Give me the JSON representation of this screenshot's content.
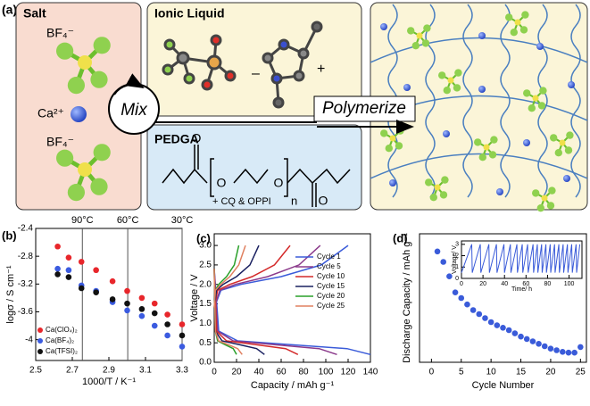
{
  "panel_a": {
    "label": "(a)",
    "salt": {
      "title": "Salt",
      "anion_top": "BF₄⁻",
      "cation": "Ca²⁺",
      "anion_bottom": "BF₄⁻"
    },
    "ionic_liquid": {
      "title": "Ionic Liquid",
      "minus": "–",
      "plus": "+"
    },
    "mix": "Mix",
    "polymerize": "Polymerize",
    "pedga": {
      "title": "PEDGA",
      "oxygens": [
        "O",
        "O",
        "O",
        "O"
      ],
      "n": "n",
      "additives": "+ CQ & OPPI"
    }
  },
  "chart_data": [
    {
      "type": "scatter",
      "label": "(b)",
      "xlabel": "1000/T / K⁻¹",
      "ylabel": "logσ / S cm⁻¹",
      "xlim": [
        2.5,
        3.3
      ],
      "xticks": [
        2.5,
        2.7,
        2.9,
        3.1,
        3.3
      ],
      "ylim": [
        -4.3,
        -2.4
      ],
      "yticks": [
        -2.4,
        -2.8,
        -3.2,
        -3.6,
        -4.0
      ],
      "x": [
        2.62,
        2.68,
        2.75,
        2.83,
        2.92,
        3.0,
        3.08,
        3.15,
        3.22,
        3.3
      ],
      "series": [
        {
          "name": "Ca(ClO₄)₂",
          "color": "#e8262b",
          "values": [
            -2.66,
            -2.82,
            -2.88,
            -3.0,
            -3.16,
            -3.3,
            -3.4,
            -3.48,
            -3.64,
            -3.78
          ]
        },
        {
          "name": "Ca(BF₄)₂",
          "color": "#3b5be0",
          "values": [
            -2.98,
            -3.0,
            -3.22,
            -3.3,
            -3.46,
            -3.58,
            -3.66,
            -3.8,
            -3.94,
            -4.1
          ]
        },
        {
          "name": "Ca(TFSI)₂",
          "color": "#111111",
          "values": [
            -3.06,
            -3.1,
            -3.26,
            -3.32,
            -3.42,
            -3.48,
            -3.56,
            -3.62,
            -3.78,
            -3.94
          ]
        }
      ],
      "reference_lines": [
        {
          "value": 2.755,
          "label": "90°C"
        },
        {
          "value": 3.003,
          "label": "60°C"
        },
        {
          "value": 3.3,
          "label": "30°C"
        }
      ],
      "legend": "lower left"
    },
    {
      "type": "line",
      "label": "(c)",
      "xlabel": "Capacity / mAh g⁻¹",
      "ylabel": "Voltage / V",
      "xlim": [
        0,
        140
      ],
      "xticks": [
        0,
        20,
        40,
        60,
        80,
        100,
        120,
        140
      ],
      "ylim": [
        0,
        3.3
      ],
      "yticks": [
        {
          "value": 0,
          "label": "0.0"
        },
        0.5,
        {
          "value": 1,
          "label": "1.0"
        },
        1.5,
        {
          "value": 2,
          "label": "2.0"
        },
        2.5,
        {
          "value": 3,
          "label": "3.0"
        }
      ],
      "series": [
        {
          "name": "Cycle 1",
          "color": "#3a5bd9",
          "x": [
            0,
            6,
            24,
            60,
            96,
            120,
            null,
            0,
            4,
            21,
            70,
            119,
            140
          ],
          "values": [
            1.4,
            1.85,
            2.0,
            2.2,
            2.5,
            3.0,
            null,
            2.4,
            0.8,
            0.55,
            0.45,
            0.35,
            0.2
          ]
        },
        {
          "name": "Cycle 5",
          "color": "#8b3a8b",
          "x": [
            0,
            5,
            19,
            48,
            76,
            95,
            null,
            0,
            3,
            17,
            55,
            94,
            110
          ],
          "values": [
            1.4,
            1.85,
            2.0,
            2.2,
            2.5,
            3.0,
            null,
            2.4,
            0.8,
            0.55,
            0.45,
            0.35,
            0.2
          ]
        },
        {
          "name": "Cycle 10",
          "color": "#d42a2a",
          "x": [
            0,
            3,
            14,
            34,
            54,
            68,
            null,
            0,
            2,
            11,
            38,
            64,
            75
          ],
          "values": [
            1.4,
            1.85,
            2.0,
            2.2,
            2.5,
            3.0,
            null,
            2.4,
            0.8,
            0.55,
            0.45,
            0.35,
            0.2
          ]
        },
        {
          "name": "Cycle 15",
          "color": "#1a2060",
          "x": [
            0,
            2,
            8,
            20,
            32,
            40,
            null,
            0,
            1,
            7,
            23,
            38,
            45
          ],
          "values": [
            1.4,
            1.85,
            2.0,
            2.2,
            2.5,
            3.0,
            null,
            2.4,
            0.8,
            0.55,
            0.45,
            0.35,
            0.2
          ]
        },
        {
          "name": "Cycle 20",
          "color": "#2aa02a",
          "x": [
            0,
            1,
            4,
            11,
            18,
            22,
            null,
            0,
            1,
            3,
            10,
            17,
            20
          ],
          "values": [
            1.4,
            1.85,
            2.0,
            2.2,
            2.5,
            3.0,
            null,
            2.4,
            0.8,
            0.55,
            0.45,
            0.35,
            0.2
          ]
        },
        {
          "name": "Cycle 25",
          "color": "#e08060",
          "x": [
            0,
            1,
            6,
            14,
            22,
            28,
            null,
            0,
            1,
            4,
            13,
            21,
            25
          ],
          "values": [
            1.4,
            1.85,
            2.0,
            2.2,
            2.5,
            3.0,
            null,
            2.4,
            0.8,
            0.55,
            0.45,
            0.35,
            0.2
          ]
        }
      ],
      "legend": "upper right"
    },
    {
      "type": "scatter",
      "label": "(d)",
      "xlabel": "Cycle Number",
      "ylabel": "Discharge Capacity / mAh g⁻¹",
      "xlim": [
        -2,
        26
      ],
      "xticks": [
        0,
        5,
        10,
        15,
        20,
        25
      ],
      "ylim": [
        0,
        160
      ],
      "x": [
        1,
        2,
        3,
        4,
        5,
        6,
        7,
        8,
        9,
        10,
        11,
        12,
        13,
        14,
        15,
        16,
        17,
        18,
        19,
        20,
        21,
        22,
        23,
        24,
        25
      ],
      "series": [
        {
          "color": "#3a5bd9",
          "values": [
            138,
            125,
            107,
            87,
            80,
            72,
            65,
            60,
            55,
            50,
            46,
            43,
            40,
            36,
            32,
            29,
            26,
            23,
            20,
            17,
            15,
            13,
            12,
            12,
            19
          ]
        }
      ]
    },
    {
      "type": "line",
      "xlabel": "Time/ h",
      "ylabel": "Voltage/ V",
      "xlim": [
        0,
        112
      ],
      "xticks": [
        0,
        20,
        40,
        60,
        80,
        100
      ],
      "ylim": [
        0,
        3.3
      ],
      "yticks": [
        0,
        1,
        2,
        3
      ],
      "series": [
        {
          "color": "#3a5bd9",
          "x": [
            0,
            9.5,
            10,
            17.5,
            18,
            25.5,
            26,
            32.5,
            33,
            39.5,
            40,
            45.5,
            46,
            51.5,
            52,
            56.5,
            57,
            61.5,
            62,
            66.5,
            67,
            70.5,
            71,
            74.5,
            75,
            78.5,
            79,
            82.5,
            83,
            86.5,
            87,
            90.5,
            91,
            94.5,
            95,
            98.5,
            99,
            102.5,
            103,
            106.5,
            107,
            110
          ],
          "values": [
            0.5,
            3.0,
            0.5,
            3.0,
            0.5,
            3.0,
            0.5,
            3.0,
            0.5,
            3.0,
            0.5,
            3.0,
            0.5,
            3.0,
            0.5,
            3.0,
            0.5,
            3.0,
            0.5,
            3.0,
            0.5,
            3.0,
            0.5,
            3.0,
            0.5,
            3.0,
            0.5,
            3.0,
            0.5,
            3.0,
            0.5,
            3.0,
            0.5,
            3.0,
            0.5,
            3.0,
            0.5,
            3.0,
            0.5,
            3.0,
            0.5,
            3.0
          ]
        }
      ]
    }
  ]
}
